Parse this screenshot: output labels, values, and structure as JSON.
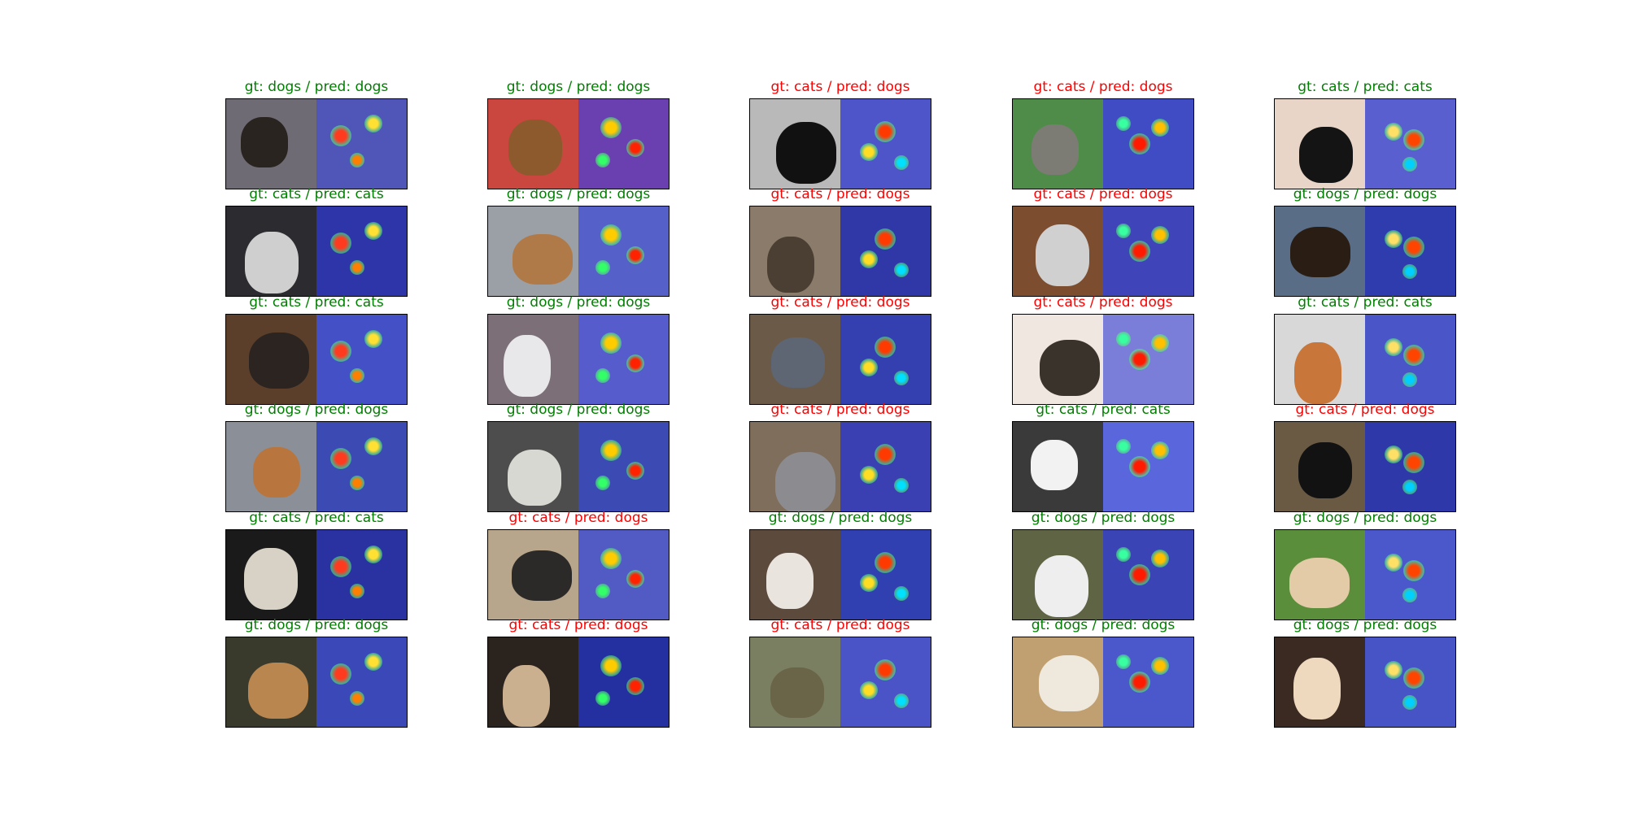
{
  "colors": {
    "correct": "#008000",
    "wrong": "#ff0000"
  },
  "grid": [
    [
      {
        "gt": "dogs",
        "pred": "dogs",
        "title": "gt: dogs / pred: dogs",
        "photo_bg": "#6f6b74",
        "subject": "#2a2420",
        "heat_bg": "#5056b8"
      },
      {
        "gt": "dogs",
        "pred": "dogs",
        "title": "gt: dogs / pred: dogs",
        "photo_bg": "#c9473f",
        "subject": "#8d5a2e",
        "heat_bg": "#6a3fb0"
      },
      {
        "gt": "cats",
        "pred": "dogs",
        "title": "gt: cats / pred: dogs",
        "photo_bg": "#b9b9b9",
        "subject": "#111111",
        "heat_bg": "#4d55c9"
      },
      {
        "gt": "cats",
        "pred": "dogs",
        "title": "gt: cats / pred: dogs",
        "photo_bg": "#4f8c4a",
        "subject": "#7c7c74",
        "heat_bg": "#3f4cc4"
      },
      {
        "gt": "cats",
        "pred": "cats",
        "title": "gt: cats / pred: cats",
        "photo_bg": "#e9d5c8",
        "subject": "#141414",
        "heat_bg": "#5a5fd0"
      }
    ],
    [
      {
        "gt": "cats",
        "pred": "cats",
        "title": "gt: cats / pred: cats",
        "photo_bg": "#2b2b30",
        "subject": "#cfcfcf",
        "heat_bg": "#2e35a8"
      },
      {
        "gt": "dogs",
        "pred": "dogs",
        "title": "gt: dogs / pred: dogs",
        "photo_bg": "#9aa0a6",
        "subject": "#b07a48",
        "heat_bg": "#5561c9"
      },
      {
        "gt": "cats",
        "pred": "dogs",
        "title": "gt: cats / pred: dogs",
        "photo_bg": "#8a7b6a",
        "subject": "#4b3e33",
        "heat_bg": "#3038a8"
      },
      {
        "gt": "cats",
        "pred": "dogs",
        "title": "gt: cats / pred: dogs",
        "photo_bg": "#7d4d30",
        "subject": "#d0d0d0",
        "heat_bg": "#3f45b8"
      },
      {
        "gt": "dogs",
        "pred": "dogs",
        "title": "gt: dogs / pred: dogs",
        "photo_bg": "#5a6d86",
        "subject": "#2a1d14",
        "heat_bg": "#2f3cae"
      }
    ],
    [
      {
        "gt": "cats",
        "pred": "cats",
        "title": "gt: cats / pred: cats",
        "photo_bg": "#5b3f2a",
        "subject": "#2b2420",
        "heat_bg": "#4451c6"
      },
      {
        "gt": "dogs",
        "pred": "dogs",
        "title": "gt: dogs / pred: dogs",
        "photo_bg": "#7c6f78",
        "subject": "#e8e8ea",
        "heat_bg": "#565ccc"
      },
      {
        "gt": "cats",
        "pred": "dogs",
        "title": "gt: cats / pred: dogs",
        "photo_bg": "#6c5a48",
        "subject": "#5d6672",
        "heat_bg": "#3440b0"
      },
      {
        "gt": "cats",
        "pred": "dogs",
        "title": "gt: cats / pred: dogs",
        "photo_bg": "#f0e7e0",
        "subject": "#3a332c",
        "heat_bg": "#7a7ed8"
      },
      {
        "gt": "cats",
        "pred": "cats",
        "title": "gt: cats / pred: cats",
        "photo_bg": "#d8d8d8",
        "subject": "#c8763a",
        "heat_bg": "#4a56c8"
      }
    ],
    [
      {
        "gt": "dogs",
        "pred": "dogs",
        "title": "gt: dogs / pred: dogs",
        "photo_bg": "#8a8f98",
        "subject": "#b8763e",
        "heat_bg": "#3c4ab4"
      },
      {
        "gt": "dogs",
        "pred": "dogs",
        "title": "gt: dogs / pred: dogs",
        "photo_bg": "#4d4d4d",
        "subject": "#d8d8d2",
        "heat_bg": "#3c4ab4"
      },
      {
        "gt": "cats",
        "pred": "dogs",
        "title": "gt: cats / pred: dogs",
        "photo_bg": "#806e5c",
        "subject": "#8c8c90",
        "heat_bg": "#3a3fb2"
      },
      {
        "gt": "cats",
        "pred": "cats",
        "title": "gt: cats / pred: cats",
        "photo_bg": "#3a3a3a",
        "subject": "#f2f2f2",
        "heat_bg": "#5a66dc"
      },
      {
        "gt": "cats",
        "pred": "dogs",
        "title": "gt: cats / pred: dogs",
        "photo_bg": "#6a5a44",
        "subject": "#121212",
        "heat_bg": "#2f38a8"
      }
    ],
    [
      {
        "gt": "cats",
        "pred": "cats",
        "title": "gt: cats / pred: cats",
        "photo_bg": "#1a1a1a",
        "subject": "#d8d2c6",
        "heat_bg": "#2a32a2"
      },
      {
        "gt": "cats",
        "pred": "dogs",
        "title": "gt: cats / pred: dogs",
        "photo_bg": "#b8a68c",
        "subject": "#2c2a28",
        "heat_bg": "#525ac4"
      },
      {
        "gt": "dogs",
        "pred": "dogs",
        "title": "gt: dogs / pred: dogs",
        "photo_bg": "#5c4a3c",
        "subject": "#e9e4de",
        "heat_bg": "#3040b0"
      },
      {
        "gt": "dogs",
        "pred": "dogs",
        "title": "gt: dogs / pred: dogs",
        "photo_bg": "#5f6444",
        "subject": "#eeeeee",
        "heat_bg": "#3a44b4"
      },
      {
        "gt": "dogs",
        "pred": "dogs",
        "title": "gt: dogs / pred: dogs",
        "photo_bg": "#5b8e3a",
        "subject": "#e2cba6",
        "heat_bg": "#4a58cc"
      }
    ],
    [
      {
        "gt": "dogs",
        "pred": "dogs",
        "title": "gt: dogs / pred: dogs",
        "photo_bg": "#3a3a2c",
        "subject": "#b8864e",
        "heat_bg": "#3a48b8"
      },
      {
        "gt": "cats",
        "pred": "dogs",
        "title": "gt: cats / pred: dogs",
        "photo_bg": "#2a231e",
        "subject": "#cbb090",
        "heat_bg": "#2530a0"
      },
      {
        "gt": "cats",
        "pred": "dogs",
        "title": "gt: cats / pred: dogs",
        "photo_bg": "#7a7f62",
        "subject": "#6a6448",
        "heat_bg": "#4a54c6"
      },
      {
        "gt": "dogs",
        "pred": "dogs",
        "title": "gt: dogs / pred: dogs",
        "photo_bg": "#c0a070",
        "subject": "#efe8dc",
        "heat_bg": "#4a58cc"
      },
      {
        "gt": "dogs",
        "pred": "dogs",
        "title": "gt: dogs / pred: dogs",
        "photo_bg": "#3a2a22",
        "subject": "#eed9bf",
        "heat_bg": "#4654c6"
      }
    ]
  ]
}
